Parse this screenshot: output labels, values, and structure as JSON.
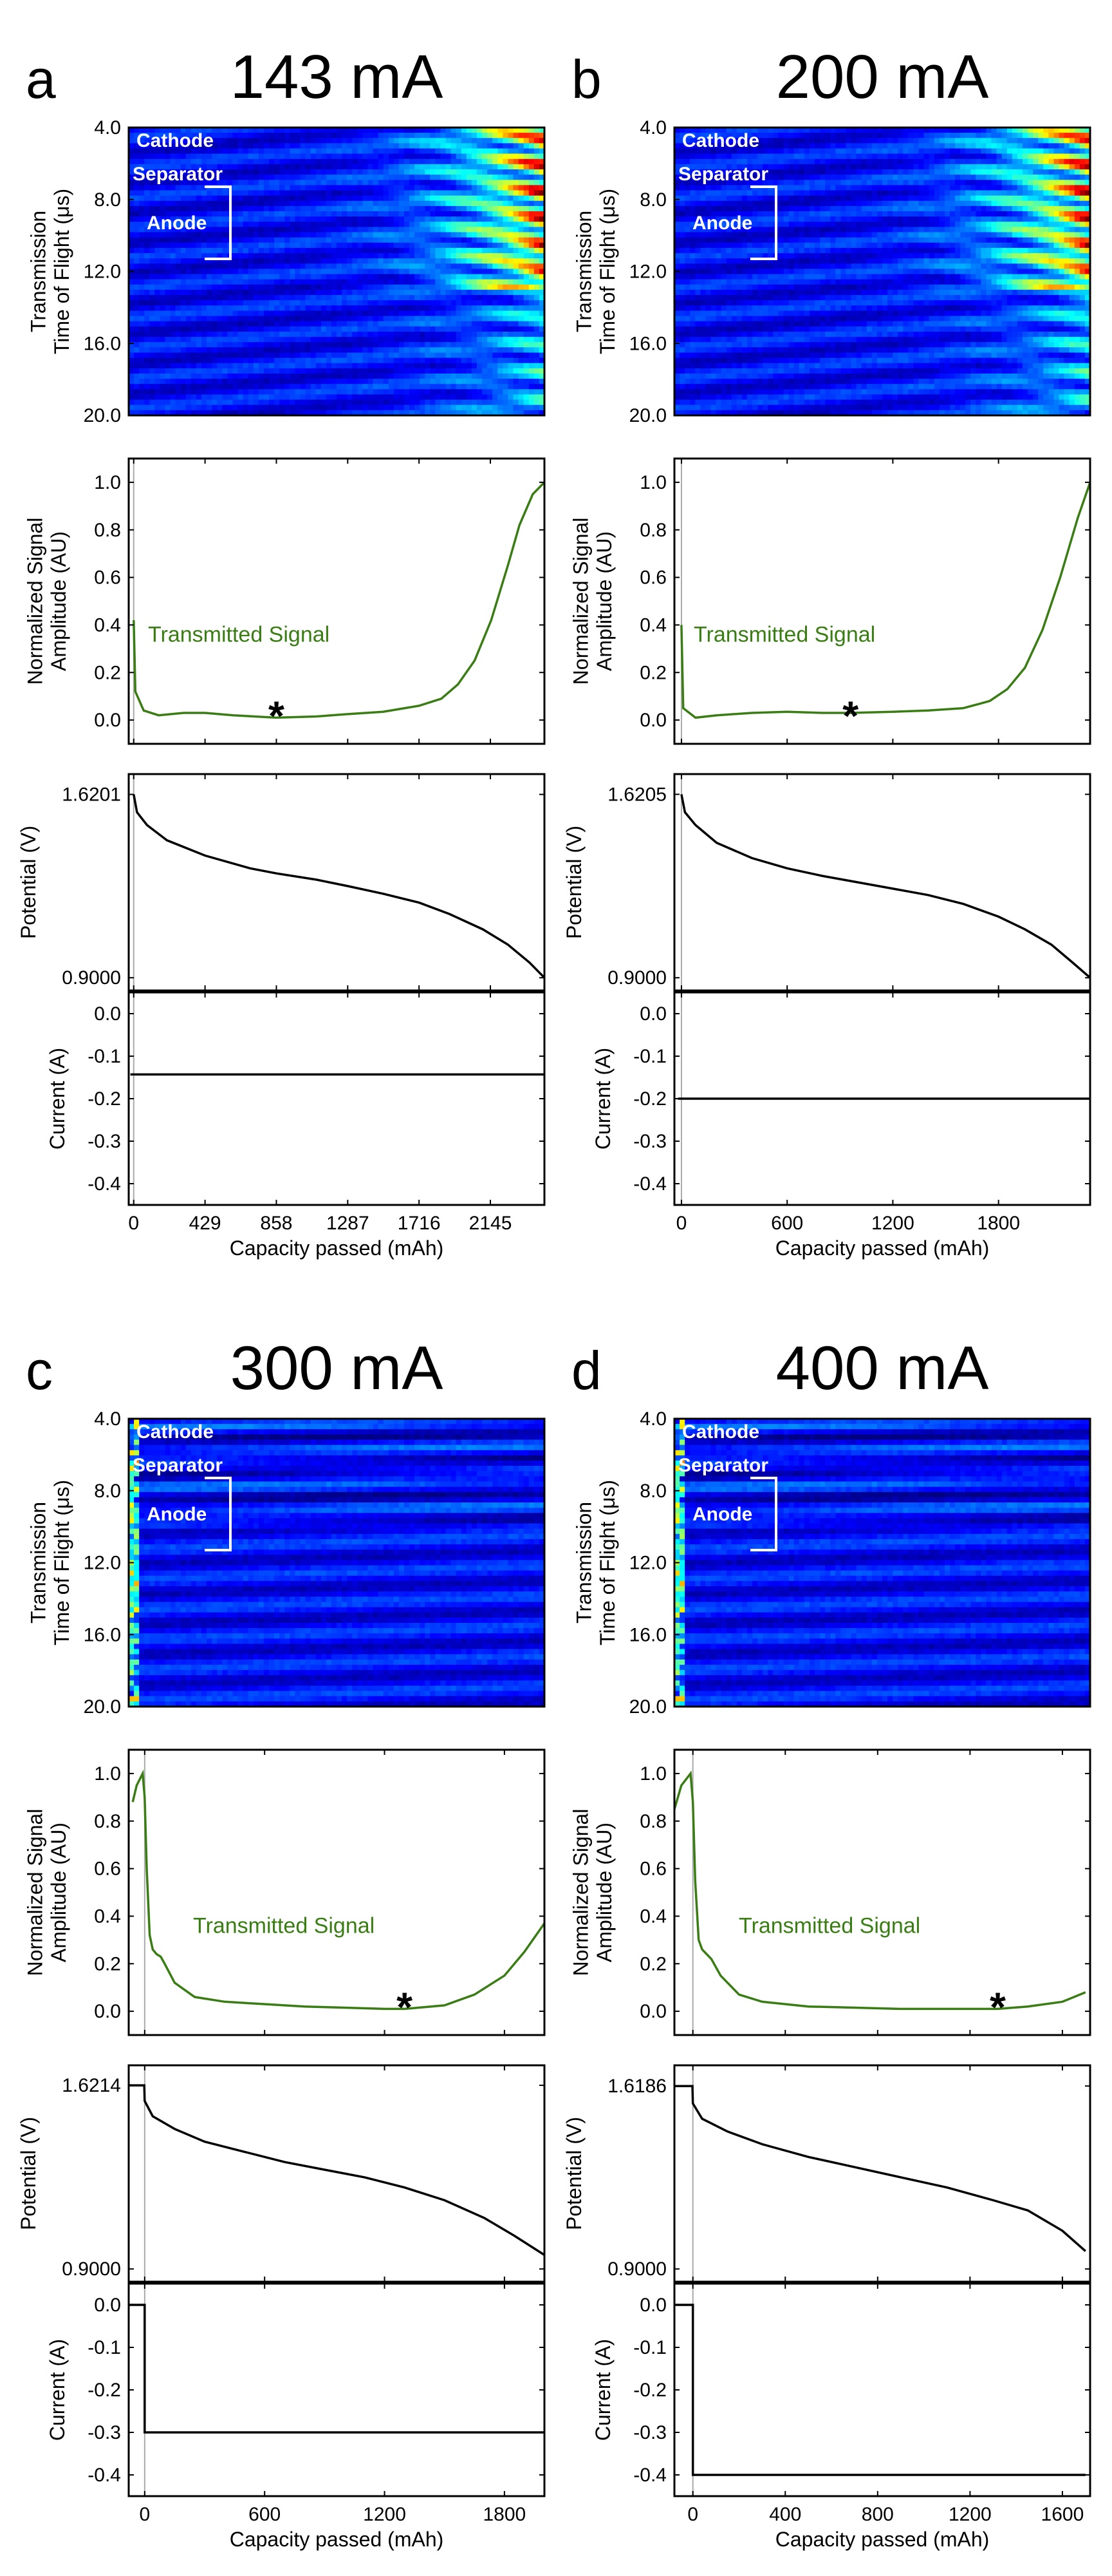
{
  "colors": {
    "signal": "#3a7d14",
    "annotation_green": "#3a7d14",
    "heatmap_background": "#0a1e8c",
    "frame": "#000000"
  },
  "chart_data": [
    {
      "panel": "a",
      "title": "143 mA",
      "heatmap": {
        "type": "heatmap",
        "ylabel": "Transmission Time of Flight (μs)",
        "ylabel_lines": [
          "Transmission",
          "Time of Flight (μs)"
        ],
        "yticks": [
          "4.0",
          "8.0",
          "12.0",
          "16.0",
          "20.0"
        ],
        "ylim": [
          4.0,
          20.0
        ],
        "annotations": {
          "cathode": "Cathode",
          "separator": "Separator",
          "anode": "Anode"
        },
        "colormap": "jet"
      },
      "signal": {
        "type": "line",
        "ylabel_lines": [
          "Normalized Signal",
          "Amplitude (AU)"
        ],
        "ylim": [
          -0.1,
          1.1
        ],
        "yticks": [
          "0.0",
          "0.2",
          "0.4",
          "0.6",
          "0.8",
          "1.0"
        ],
        "legend_text": "Transmitted Signal",
        "marker": "*",
        "marker_x": 858,
        "x": [
          0,
          10,
          60,
          150,
          300,
          429,
          600,
          858,
          1100,
          1287,
          1500,
          1716,
          1850,
          1950,
          2050,
          2150,
          2250,
          2320,
          2400,
          2470
        ],
        "y": [
          0.42,
          0.12,
          0.04,
          0.02,
          0.03,
          0.03,
          0.02,
          0.01,
          0.015,
          0.025,
          0.035,
          0.06,
          0.09,
          0.15,
          0.25,
          0.42,
          0.65,
          0.82,
          0.95,
          1.0
        ]
      },
      "potential": {
        "type": "line",
        "ylabel": "Potential (V)",
        "yticks": [
          "1.6201",
          "0.9000"
        ],
        "ylim": [
          0.85,
          1.7
        ],
        "x": [
          0,
          20,
          80,
          200,
          429,
          700,
          858,
          1100,
          1287,
          1500,
          1716,
          1900,
          2100,
          2250,
          2380,
          2470
        ],
        "y": [
          1.6201,
          1.55,
          1.5,
          1.44,
          1.38,
          1.33,
          1.31,
          1.285,
          1.26,
          1.23,
          1.195,
          1.15,
          1.09,
          1.03,
          0.96,
          0.9
        ]
      },
      "current": {
        "type": "line",
        "ylabel": "Current (A)",
        "yticks": [
          "0.0",
          "-0.1",
          "-0.2",
          "-0.3",
          "-0.4"
        ],
        "ylim": [
          -0.45,
          0.05
        ],
        "x": [
          -20,
          0,
          0,
          2470
        ],
        "y": [
          -0.143,
          -0.143,
          -0.143,
          -0.143
        ]
      },
      "xaxis": {
        "xlabel": "Capacity passed (mAh)",
        "xlim": [
          -30,
          2470
        ],
        "xticks": [
          0,
          429,
          858,
          1287,
          1716,
          2145
        ]
      }
    },
    {
      "panel": "b",
      "title": "200 mA",
      "heatmap": {
        "type": "heatmap",
        "ylabel": "Transmission Time of Flight (μs)",
        "ylabel_lines": [
          "Transmission",
          "Time of Flight (μs)"
        ],
        "yticks": [
          "4.0",
          "8.0",
          "12.0",
          "16.0",
          "20.0"
        ],
        "ylim": [
          4.0,
          20.0
        ],
        "annotations": {
          "cathode": "Cathode",
          "separator": "Separator",
          "anode": "Anode"
        },
        "colormap": "jet"
      },
      "signal": {
        "type": "line",
        "ylabel_lines": [
          "Normalized Signal",
          "Amplitude (AU)"
        ],
        "ylim": [
          -0.1,
          1.1
        ],
        "yticks": [
          "0.0",
          "0.2",
          "0.4",
          "0.6",
          "0.8",
          "1.0"
        ],
        "legend_text": "Transmitted Signal",
        "marker": "*",
        "marker_x": 960,
        "x": [
          0,
          10,
          80,
          200,
          400,
          600,
          800,
          960,
          1200,
          1400,
          1600,
          1750,
          1850,
          1950,
          2050,
          2150,
          2250,
          2320
        ],
        "y": [
          0.4,
          0.05,
          0.01,
          0.02,
          0.03,
          0.035,
          0.03,
          0.03,
          0.035,
          0.04,
          0.05,
          0.08,
          0.13,
          0.22,
          0.38,
          0.6,
          0.85,
          1.0
        ]
      },
      "potential": {
        "type": "line",
        "ylabel": "Potential (V)",
        "yticks": [
          "1.6205",
          "0.9000"
        ],
        "ylim": [
          0.85,
          1.7
        ],
        "x": [
          0,
          20,
          80,
          200,
          400,
          600,
          800,
          1000,
          1200,
          1400,
          1600,
          1800,
          1950,
          2100,
          2220,
          2320
        ],
        "y": [
          1.6205,
          1.55,
          1.5,
          1.43,
          1.37,
          1.33,
          1.3,
          1.275,
          1.25,
          1.225,
          1.19,
          1.14,
          1.09,
          1.03,
          0.96,
          0.9
        ]
      },
      "current": {
        "type": "line",
        "ylabel": "Current (A)",
        "yticks": [
          "0.0",
          "-0.1",
          "-0.2",
          "-0.3",
          "-0.4"
        ],
        "ylim": [
          -0.45,
          0.05
        ],
        "x": [
          -20,
          0,
          0,
          2320
        ],
        "y": [
          -0.2,
          -0.2,
          -0.2,
          -0.2
        ]
      },
      "xaxis": {
        "xlabel": "Capacity passed (mAh)",
        "xlim": [
          -40,
          2320
        ],
        "xticks": [
          0,
          600,
          1200,
          1800
        ]
      }
    },
    {
      "panel": "c",
      "title": "300 mA",
      "heatmap": {
        "type": "heatmap",
        "ylabel": "Transmission Time of Flight (μs)",
        "ylabel_lines": [
          "Transmission",
          "Time of Flight (μs)"
        ],
        "yticks": [
          "4.0",
          "8.0",
          "12.0",
          "16.0",
          "20.0"
        ],
        "ylim": [
          4.0,
          20.0
        ],
        "annotations": {
          "cathode": "Cathode",
          "separator": "Separator",
          "anode": "Anode"
        },
        "colormap": "jet"
      },
      "signal": {
        "type": "line",
        "ylabel_lines": [
          "Normalized Signal",
          "Amplitude (AU)"
        ],
        "ylim": [
          -0.1,
          1.1
        ],
        "yticks": [
          "0.0",
          "0.2",
          "0.4",
          "0.6",
          "0.8",
          "1.0"
        ],
        "legend_text": "Transmitted Signal",
        "marker": "*",
        "marker_x": 1300,
        "x": [
          -60,
          -40,
          -10,
          0,
          10,
          25,
          40,
          60,
          80,
          100,
          150,
          250,
          400,
          600,
          800,
          1000,
          1200,
          1300,
          1500,
          1650,
          1800,
          1900,
          2000
        ],
        "y": [
          0.88,
          0.95,
          1.0,
          0.9,
          0.6,
          0.32,
          0.26,
          0.24,
          0.23,
          0.2,
          0.12,
          0.06,
          0.04,
          0.03,
          0.02,
          0.015,
          0.01,
          0.01,
          0.025,
          0.07,
          0.15,
          0.25,
          0.37
        ]
      },
      "potential": {
        "type": "line",
        "ylabel": "Potential (V)",
        "yticks": [
          "1.6214",
          "0.9000"
        ],
        "ylim": [
          0.85,
          1.7
        ],
        "x": [
          -80,
          -2,
          0,
          40,
          150,
          300,
          500,
          700,
          900,
          1100,
          1300,
          1500,
          1700,
          1850,
          2000
        ],
        "y": [
          1.6214,
          1.6214,
          1.56,
          1.5,
          1.45,
          1.4,
          1.36,
          1.32,
          1.29,
          1.26,
          1.22,
          1.17,
          1.1,
          1.03,
          0.955
        ]
      },
      "current": {
        "type": "line",
        "ylabel": "Current (A)",
        "yticks": [
          "0.0",
          "-0.1",
          "-0.2",
          "-0.3",
          "-0.4"
        ],
        "ylim": [
          -0.45,
          0.05
        ],
        "x": [
          -80,
          0,
          0,
          2000
        ],
        "y": [
          0.0,
          0.0,
          -0.3,
          -0.3
        ]
      },
      "xaxis": {
        "xlabel": "Capacity passed (mAh)",
        "xlim": [
          -80,
          2000
        ],
        "xticks": [
          0,
          600,
          1200,
          1800
        ]
      }
    },
    {
      "panel": "d",
      "title": "400 mA",
      "heatmap": {
        "type": "heatmap",
        "ylabel": "Transmission Time of Flight (μs)",
        "ylabel_lines": [
          "Transmission",
          "Time of Flight (μs)"
        ],
        "yticks": [
          "4.0",
          "8.0",
          "12.0",
          "16.0",
          "20.0"
        ],
        "ylim": [
          4.0,
          20.0
        ],
        "annotations": {
          "cathode": "Cathode",
          "separator": "Separator",
          "anode": "Anode"
        },
        "colormap": "jet"
      },
      "signal": {
        "type": "line",
        "ylabel_lines": [
          "Normalized Signal",
          "Amplitude (AU)"
        ],
        "ylim": [
          -0.1,
          1.1
        ],
        "yticks": [
          "0.0",
          "0.2",
          "0.4",
          "0.6",
          "0.8",
          "1.0"
        ],
        "legend_text": "Transmitted Signal",
        "marker": "*",
        "marker_x": 1320,
        "x": [
          -80,
          -50,
          -10,
          0,
          10,
          25,
          40,
          60,
          80,
          120,
          200,
          300,
          500,
          700,
          900,
          1100,
          1320,
          1450,
          1600,
          1700
        ],
        "y": [
          0.85,
          0.95,
          1.0,
          0.88,
          0.55,
          0.3,
          0.26,
          0.24,
          0.22,
          0.15,
          0.07,
          0.04,
          0.02,
          0.015,
          0.01,
          0.01,
          0.01,
          0.02,
          0.04,
          0.08
        ]
      },
      "potential": {
        "type": "line",
        "ylabel": "Potential (V)",
        "yticks": [
          "1.6186",
          "0.9000"
        ],
        "ylim": [
          0.85,
          1.7
        ],
        "x": [
          -80,
          -2,
          0,
          40,
          150,
          300,
          500,
          700,
          900,
          1100,
          1300,
          1450,
          1600,
          1700
        ],
        "y": [
          1.6186,
          1.6186,
          1.55,
          1.49,
          1.44,
          1.39,
          1.34,
          1.3,
          1.26,
          1.22,
          1.17,
          1.13,
          1.05,
          0.97
        ]
      },
      "current": {
        "type": "line",
        "ylabel": "Current (A)",
        "yticks": [
          "0.0",
          "-0.1",
          "-0.2",
          "-0.3",
          "-0.4"
        ],
        "ylim": [
          -0.45,
          0.05
        ],
        "x": [
          -80,
          0,
          0,
          1700
        ],
        "y": [
          0.0,
          0.0,
          -0.4,
          -0.4
        ]
      },
      "xaxis": {
        "xlabel": "Capacity passed (mAh)",
        "xlim": [
          -80,
          1720
        ],
        "xticks": [
          0,
          400,
          800,
          1200,
          1600
        ]
      }
    }
  ]
}
